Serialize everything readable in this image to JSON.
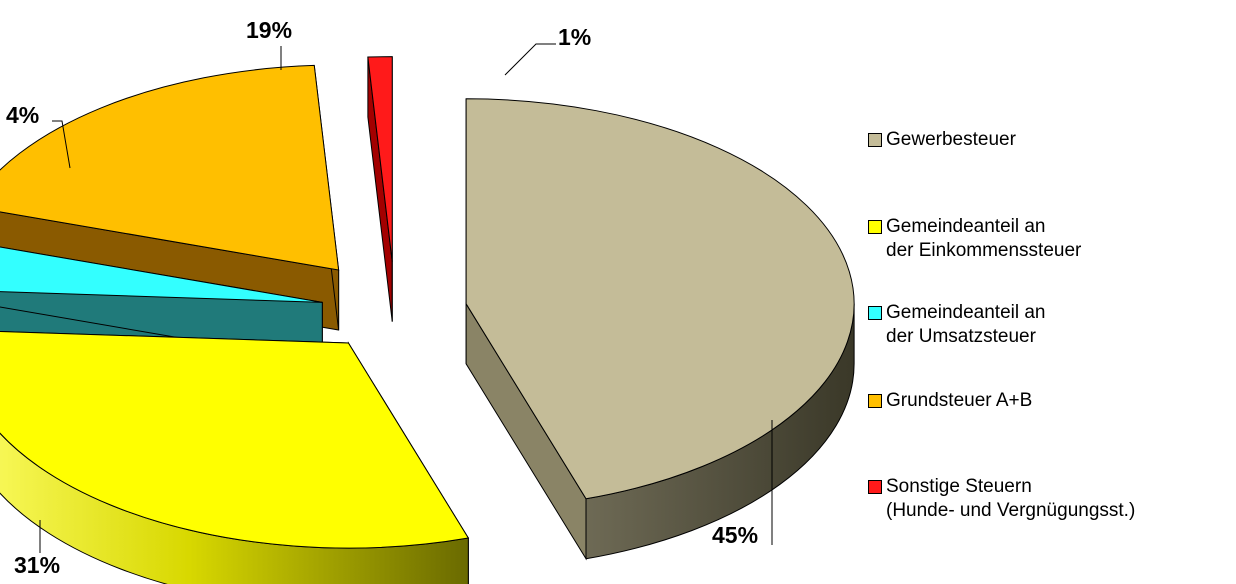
{
  "chart_data": {
    "type": "pie",
    "categories": [
      "Gewerbesteuer",
      "Gemeindeanteil an\nder Einkommenssteuer",
      "Gemeindeanteil an\nder Umsatzsteuer",
      "Grundsteuer A+B",
      "Sonstige Steuern\n(Hunde- und Vergnügungsst.)"
    ],
    "values": [
      45,
      31,
      4,
      19,
      1
    ],
    "labels": [
      "45%",
      "31%",
      "4%",
      "19%",
      "1%"
    ],
    "colors": [
      "#c4bc98",
      "#ffff00",
      "#33ffff",
      "#ffbf00",
      "#ff1a1a"
    ],
    "legend_position": "right",
    "exploded": true,
    "style": "3d"
  }
}
